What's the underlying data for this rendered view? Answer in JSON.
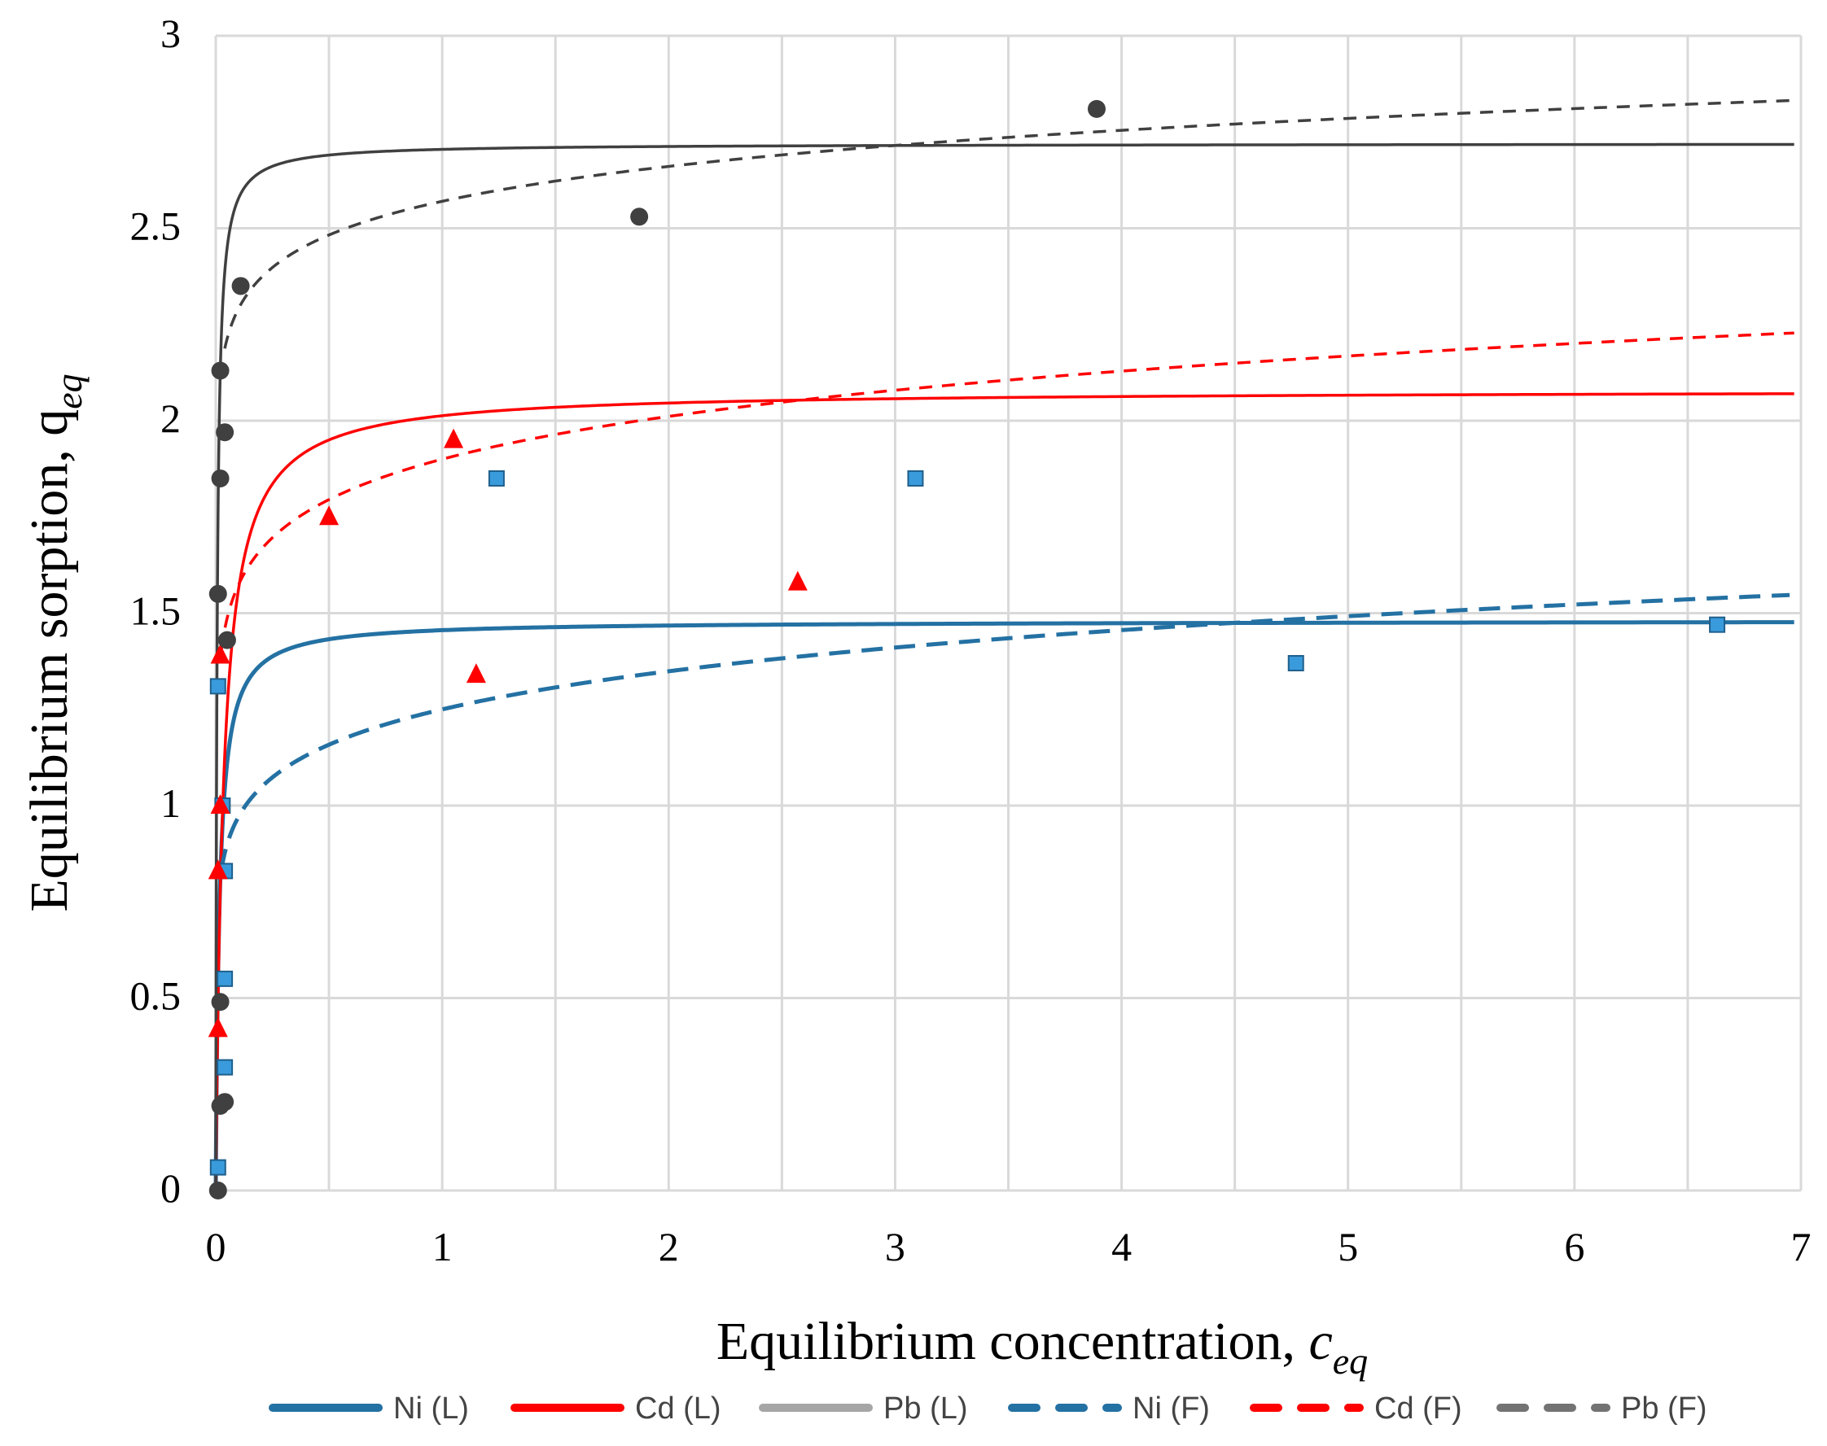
{
  "chart_data": {
    "type": "scatter",
    "title": "",
    "xlabel": "Equilibrium concentration, c_eq",
    "ylabel": "Equilibrium sorption, q_eq",
    "xlabel_parts": {
      "main": "Equilibrium concentration, ",
      "var": "c",
      "sub": "eq"
    },
    "ylabel_parts": {
      "main": "Equilibrium sorption, ",
      "var": "q",
      "sub": "eq"
    },
    "xlim": [
      0,
      7
    ],
    "ylim": [
      0,
      3
    ],
    "xticks": [
      0,
      0.5,
      1,
      1.5,
      2,
      2.5,
      3,
      3.5,
      4,
      4.5,
      5,
      5.5,
      6,
      6.5,
      7
    ],
    "xtick_labels": [
      "0",
      "1",
      "2",
      "3",
      "4",
      "5",
      "6",
      "7"
    ],
    "xtick_label_values": [
      0,
      1,
      2,
      3,
      4,
      5,
      6,
      7
    ],
    "yticks": [
      0,
      0.5,
      1,
      1.5,
      2,
      2.5,
      3
    ],
    "ytick_labels": [
      "0",
      "0.5",
      "1",
      "1.5",
      "2",
      "2.5",
      "3"
    ],
    "grid": true,
    "legend_position": "bottom",
    "colors": {
      "ni": "#2471a3",
      "ni_marker": "#3a9bdc",
      "cd": "#ff0000",
      "pb": "#404040",
      "pb_legend": "#a6a6a6",
      "pb_f_legend": "#737373",
      "grid": "#d9d9d9"
    },
    "points": [
      {
        "name": "Ni data",
        "marker": "square",
        "color": "#3a9bdc",
        "x": [
          0.01,
          0.04,
          0.04,
          0.04,
          0.03,
          0.01,
          1.24,
          3.09,
          4.77,
          6.63
        ],
        "y": [
          0.06,
          0.32,
          0.55,
          0.83,
          1.0,
          1.31,
          1.85,
          1.85,
          1.37,
          1.47
        ]
      },
      {
        "name": "Cd data",
        "marker": "triangle",
        "color": "#ff0000",
        "x": [
          0.01,
          0.01,
          0.02,
          0.02,
          0.5,
          1.05,
          1.15,
          2.57
        ],
        "y": [
          0.42,
          0.83,
          1.39,
          1.0,
          1.75,
          1.95,
          1.34,
          1.58
        ]
      },
      {
        "name": "Pb data",
        "marker": "circle",
        "color": "#404040",
        "x": [
          0.01,
          0.02,
          0.04,
          0.02,
          0.05,
          0.01,
          0.02,
          0.04,
          0.02,
          0.11,
          1.87,
          3.89
        ],
        "y": [
          0.0,
          0.22,
          0.23,
          0.49,
          1.43,
          1.55,
          1.85,
          1.97,
          2.13,
          2.35,
          2.53,
          2.81
        ]
      }
    ],
    "series": [
      {
        "name": "Ni (L)",
        "style": "solid",
        "color": "#2471a3",
        "model": "langmuir",
        "qmax": 1.48,
        "k": 60,
        "xmax": 6.97
      },
      {
        "name": "Cd (L)",
        "style": "solid",
        "color": "#ff0000",
        "model": "langmuir",
        "qmax": 2.08,
        "k": 30,
        "xmax": 6.97
      },
      {
        "name": "Pb (L)",
        "style": "solid",
        "color": "#404040",
        "model": "langmuir",
        "qmax": 2.72,
        "k": 180,
        "xmax": 6.97
      },
      {
        "name": "Ni (F)",
        "style": "dashed",
        "color": "#2471a3",
        "model": "freundlich",
        "kf": 1.25,
        "n": 0.11,
        "xmin": 0.025,
        "xmax": 6.95
      },
      {
        "name": "Cd (F)",
        "style": "dashed",
        "color": "#ff0000",
        "model": "freundlich",
        "kf": 1.9,
        "n": 0.082,
        "xmin": 0.025,
        "xmax": 6.97
      },
      {
        "name": "Pb (F)",
        "style": "dashed",
        "color": "#404040",
        "model": "freundlich",
        "kf": 2.57,
        "n": 0.05,
        "xmin": 0.04,
        "xmax": 6.97
      }
    ],
    "legend": [
      {
        "label": "Ni (L)",
        "color": "#2471a3",
        "style": "solid"
      },
      {
        "label": "Cd (L)",
        "color": "#ff0000",
        "style": "solid"
      },
      {
        "label": "Pb (L)",
        "color": "#a6a6a6",
        "style": "solid"
      },
      {
        "label": "Ni (F)",
        "color": "#2471a3",
        "style": "dashed"
      },
      {
        "label": "Cd (F)",
        "color": "#ff0000",
        "style": "dashed"
      },
      {
        "label": "Pb (F)",
        "color": "#737373",
        "style": "dashed"
      }
    ]
  }
}
